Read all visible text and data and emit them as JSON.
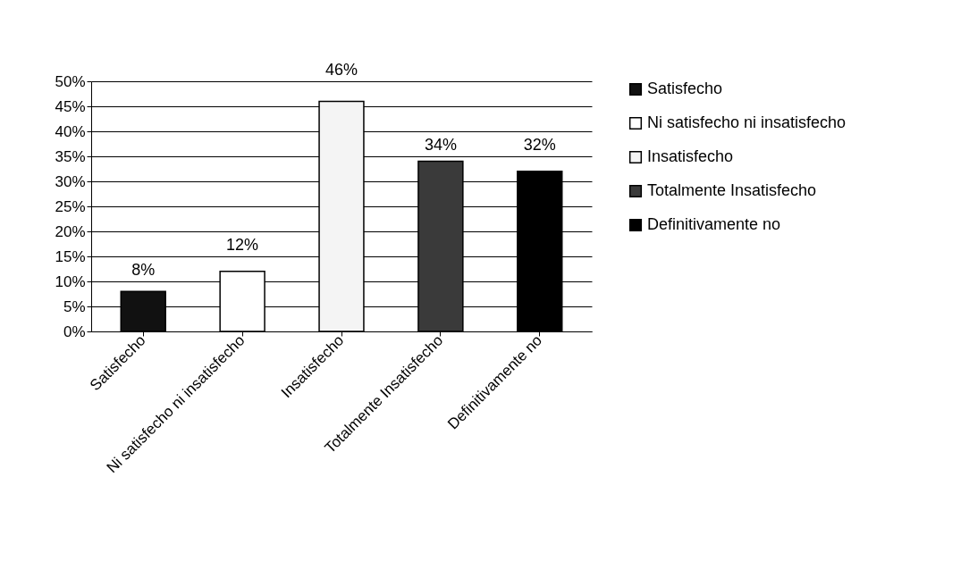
{
  "chart_data": {
    "type": "bar",
    "categories": [
      "Satisfecho",
      "Ni satisfecho ni insatisfecho",
      "Insatisfecho",
      "Totalmente Insatisfecho",
      "Definitivamente no"
    ],
    "series": [
      {
        "name": "Satisfecho",
        "color": "#111111",
        "values": [
          8,
          null,
          null,
          null,
          null
        ],
        "value_labels": [
          "8%",
          null,
          null,
          null,
          null
        ]
      },
      {
        "name": "Ni satisfecho ni insatisfecho",
        "color": "#ffffff",
        "values": [
          null,
          12,
          null,
          null,
          null
        ],
        "value_labels": [
          null,
          "12%",
          null,
          null,
          null
        ]
      },
      {
        "name": "Insatisfecho",
        "color": "#f4f4f4",
        "values": [
          null,
          null,
          46,
          null,
          null
        ],
        "value_labels": [
          null,
          null,
          "46%",
          null,
          null
        ]
      },
      {
        "name": "Totalmente Insatisfecho",
        "color": "#3a3a3a",
        "values": [
          null,
          null,
          null,
          34,
          null
        ],
        "value_labels": [
          null,
          null,
          null,
          "34%",
          null
        ]
      },
      {
        "name": "Definitivamente no",
        "color": "#000000",
        "values": [
          null,
          null,
          null,
          null,
          32
        ],
        "value_labels": [
          null,
          null,
          null,
          null,
          "32%"
        ]
      }
    ],
    "ylim": [
      0,
      50
    ],
    "yticks": [
      {
        "value": 0,
        "label": "0%"
      },
      {
        "value": 5,
        "label": "5%"
      },
      {
        "value": 10,
        "label": "10%"
      },
      {
        "value": 15,
        "label": "15%"
      },
      {
        "value": 20,
        "label": "20%"
      },
      {
        "value": 25,
        "label": "25%"
      },
      {
        "value": 30,
        "label": "30%"
      },
      {
        "value": 35,
        "label": "35%"
      },
      {
        "value": 40,
        "label": "40%"
      },
      {
        "value": 45,
        "label": "45%"
      },
      {
        "value": 50,
        "label": "50%"
      }
    ],
    "grid": "y",
    "legend": "right"
  }
}
